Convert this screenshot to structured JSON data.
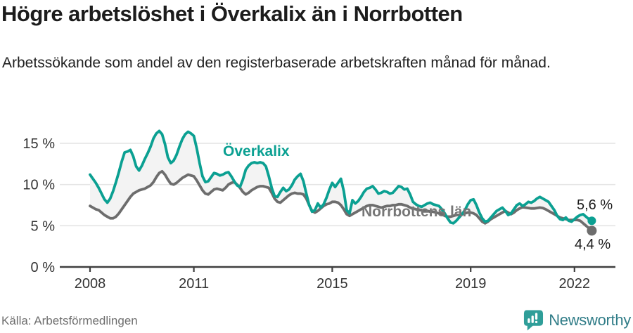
{
  "header": {
    "title": "Högre arbetslöshet i Överkalix än i Norrbotten",
    "subtitle": "Arbetssökande som andel av den registerbaserade arbetskraften månad för månad."
  },
  "footer": {
    "source": "Källa: Arbetsförmedlingen",
    "brand": "Newsworthy"
  },
  "colors": {
    "overkalix": "#0ba092",
    "norrbotten": "#6d6d6d",
    "area_fill": "#f3f3f3",
    "grid": "#e4e4e4",
    "axis": "#3f3f3f",
    "tick_label": "#333333",
    "value_label": "#1a1a1a",
    "brand_teal": "#2f9e99",
    "brand_text": "#317d88"
  },
  "chart_data": {
    "type": "line",
    "title": "Högre arbetslöshet i Överkalix än i Norrbotten",
    "subtitle": "Arbetssökande som andel av den registerbaserade arbetskraften månad för månad.",
    "x_unit": "year, monthly resolution",
    "x_start": 2008.0,
    "x_step_months": 1,
    "xlim": [
      2007.1,
      2023.2
    ],
    "ylim": [
      0,
      17.5
    ],
    "y_ticks": [
      0,
      5,
      10,
      15
    ],
    "y_tick_labels": [
      "0 %",
      "5 %",
      "10 %",
      "15 %"
    ],
    "x_ticks": [
      2008,
      2011,
      2015,
      2019,
      2022
    ],
    "x_tick_labels": [
      "2008",
      "2011",
      "2015",
      "2019",
      "2022"
    ],
    "grid": "horizontal",
    "legend_position": "inline-labels",
    "area_between_series": true,
    "series": [
      {
        "name": "Överkalix",
        "color": "#0ba092",
        "end_label": "5,6 %",
        "end_value": 5.6,
        "values": [
          11.2,
          10.7,
          10.2,
          9.6,
          8.9,
          8.2,
          7.8,
          8.3,
          9.2,
          10.3,
          11.5,
          12.8,
          13.9,
          14.0,
          14.2,
          13.4,
          12.2,
          11.7,
          12.3,
          13.1,
          13.8,
          14.6,
          15.6,
          16.2,
          16.5,
          16.1,
          14.9,
          13.3,
          12.6,
          12.9,
          13.6,
          14.6,
          15.5,
          16.1,
          16.4,
          16.2,
          15.9,
          14.4,
          12.6,
          11.0,
          10.3,
          10.4,
          10.9,
          11.4,
          11.3,
          11.1,
          11.2,
          11.4,
          11.5,
          11.0,
          10.4,
          9.9,
          9.7,
          10.6,
          11.8,
          12.3,
          12.6,
          12.7,
          12.6,
          12.7,
          12.6,
          12.2,
          11.0,
          9.6,
          8.6,
          8.5,
          9.1,
          9.6,
          9.2,
          9.4,
          9.9,
          10.6,
          11.0,
          11.3,
          10.4,
          8.9,
          7.5,
          6.7,
          6.9,
          7.7,
          7.2,
          7.6,
          8.4,
          9.4,
          10.2,
          9.7,
          10.2,
          10.7,
          9.2,
          6.9,
          6.5,
          8.1,
          7.7,
          8.0,
          8.5,
          9.1,
          9.5,
          9.6,
          9.8,
          9.4,
          8.9,
          9.0,
          9.2,
          9.1,
          8.9,
          9.0,
          9.4,
          9.8,
          9.7,
          9.4,
          9.5,
          8.8,
          7.9,
          7.6,
          7.4,
          7.3,
          7.5,
          7.7,
          7.8,
          7.6,
          7.5,
          7.4,
          7.0,
          6.5,
          5.9,
          5.4,
          5.3,
          5.6,
          6.0,
          6.4,
          6.9,
          7.6,
          8.1,
          8.2,
          7.5,
          6.6,
          5.9,
          5.5,
          5.6,
          6.0,
          6.4,
          6.8,
          7.0,
          7.2,
          6.8,
          6.3,
          6.5,
          7.0,
          7.5,
          7.7,
          7.4,
          7.6,
          7.9,
          7.8,
          8.0,
          8.3,
          8.5,
          8.3,
          8.1,
          7.9,
          7.4,
          6.9,
          6.2,
          5.8,
          5.7,
          6.0,
          5.6,
          5.5,
          5.8,
          6.1,
          6.3,
          6.4,
          6.1,
          5.8,
          5.6
        ]
      },
      {
        "name": "Norrbottens län",
        "color": "#6d6d6d",
        "end_label": "4,4 %",
        "end_value": 4.4,
        "values": [
          7.4,
          7.2,
          7.0,
          6.9,
          6.6,
          6.3,
          6.1,
          5.9,
          5.9,
          6.1,
          6.5,
          7.0,
          7.5,
          8.0,
          8.5,
          8.9,
          9.1,
          9.3,
          9.4,
          9.5,
          9.7,
          9.9,
          10.3,
          10.9,
          11.4,
          11.6,
          11.2,
          10.6,
          10.1,
          10.0,
          10.2,
          10.5,
          10.8,
          11.0,
          11.2,
          11.1,
          11.0,
          10.5,
          9.9,
          9.3,
          8.9,
          8.8,
          9.1,
          9.4,
          9.5,
          9.4,
          9.3,
          9.6,
          10.0,
          10.2,
          10.3,
          10.0,
          9.6,
          9.1,
          8.8,
          9.0,
          9.3,
          9.5,
          9.7,
          9.8,
          9.8,
          9.7,
          9.6,
          9.0,
          8.3,
          7.9,
          7.8,
          8.1,
          8.4,
          8.7,
          8.9,
          9.0,
          8.9,
          8.9,
          8.8,
          8.3,
          7.5,
          6.8,
          6.6,
          6.8,
          7.1,
          7.4,
          7.6,
          7.7,
          7.9,
          7.9,
          7.8,
          7.5,
          7.0,
          6.4,
          6.2,
          6.4,
          6.6,
          6.8,
          7.0,
          7.2,
          7.4,
          7.5,
          7.5,
          7.4,
          7.3,
          7.2,
          7.3,
          7.4,
          7.4,
          7.5,
          7.5,
          7.6,
          7.6,
          7.5,
          7.4,
          7.2,
          7.1,
          7.0,
          6.9,
          6.9,
          6.8,
          6.8,
          6.7,
          6.7,
          6.6,
          6.5,
          6.4,
          6.2,
          6.1,
          6.1,
          6.2,
          6.3,
          6.3,
          6.4,
          6.5,
          6.6,
          6.6,
          6.5,
          6.3,
          5.9,
          5.5,
          5.3,
          5.5,
          5.8,
          6.0,
          6.2,
          6.4,
          6.6,
          6.8,
          6.6,
          6.4,
          6.6,
          6.9,
          7.1,
          7.25,
          7.2,
          7.15,
          7.1,
          7.1,
          7.15,
          7.2,
          7.15,
          7.0,
          6.8,
          6.6,
          6.4,
          6.2,
          6.0,
          5.9,
          5.8,
          5.7,
          5.7,
          5.7,
          5.7,
          5.6,
          5.3,
          5.0,
          4.7,
          4.4
        ]
      }
    ]
  }
}
